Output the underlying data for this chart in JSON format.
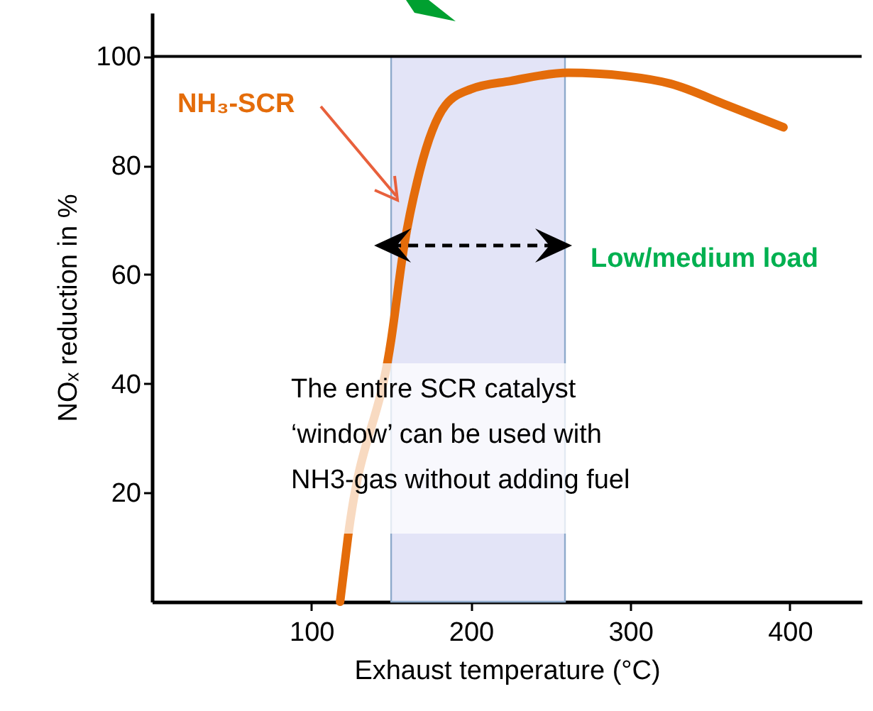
{
  "chart_data": {
    "type": "line",
    "xlabel": "Exhaust temperature (°C)",
    "ylabel": "NOₓ reduction in %",
    "xlim": [
      0,
      445
    ],
    "ylim": [
      0,
      108
    ],
    "xticks": [
      100,
      200,
      300,
      400
    ],
    "yticks": [
      20,
      40,
      60,
      80,
      100
    ],
    "x": [
      118,
      123,
      150,
      158,
      168,
      184,
      200,
      225,
      261,
      297,
      325,
      361,
      396
    ],
    "series": [
      {
        "name": "NH₃-SCR",
        "color": "#e46c0a",
        "values": [
          0,
          12,
          48,
          65,
          79,
          91,
          94,
          95.5,
          97,
          96.4,
          95,
          91,
          87
        ]
      }
    ],
    "ref_lines": [
      {
        "axis": "y",
        "value": 100,
        "color": "#000000"
      }
    ],
    "bands": [
      {
        "axis": "x",
        "from": 150,
        "to": 259,
        "label": "Low/medium load",
        "color": "#e3e4f7"
      }
    ],
    "annotations": [
      "The entire SCR catalyst\n‘window’ can be used with\nNH3-gas without adding fuel"
    ],
    "grid": false,
    "legend": false
  }
}
